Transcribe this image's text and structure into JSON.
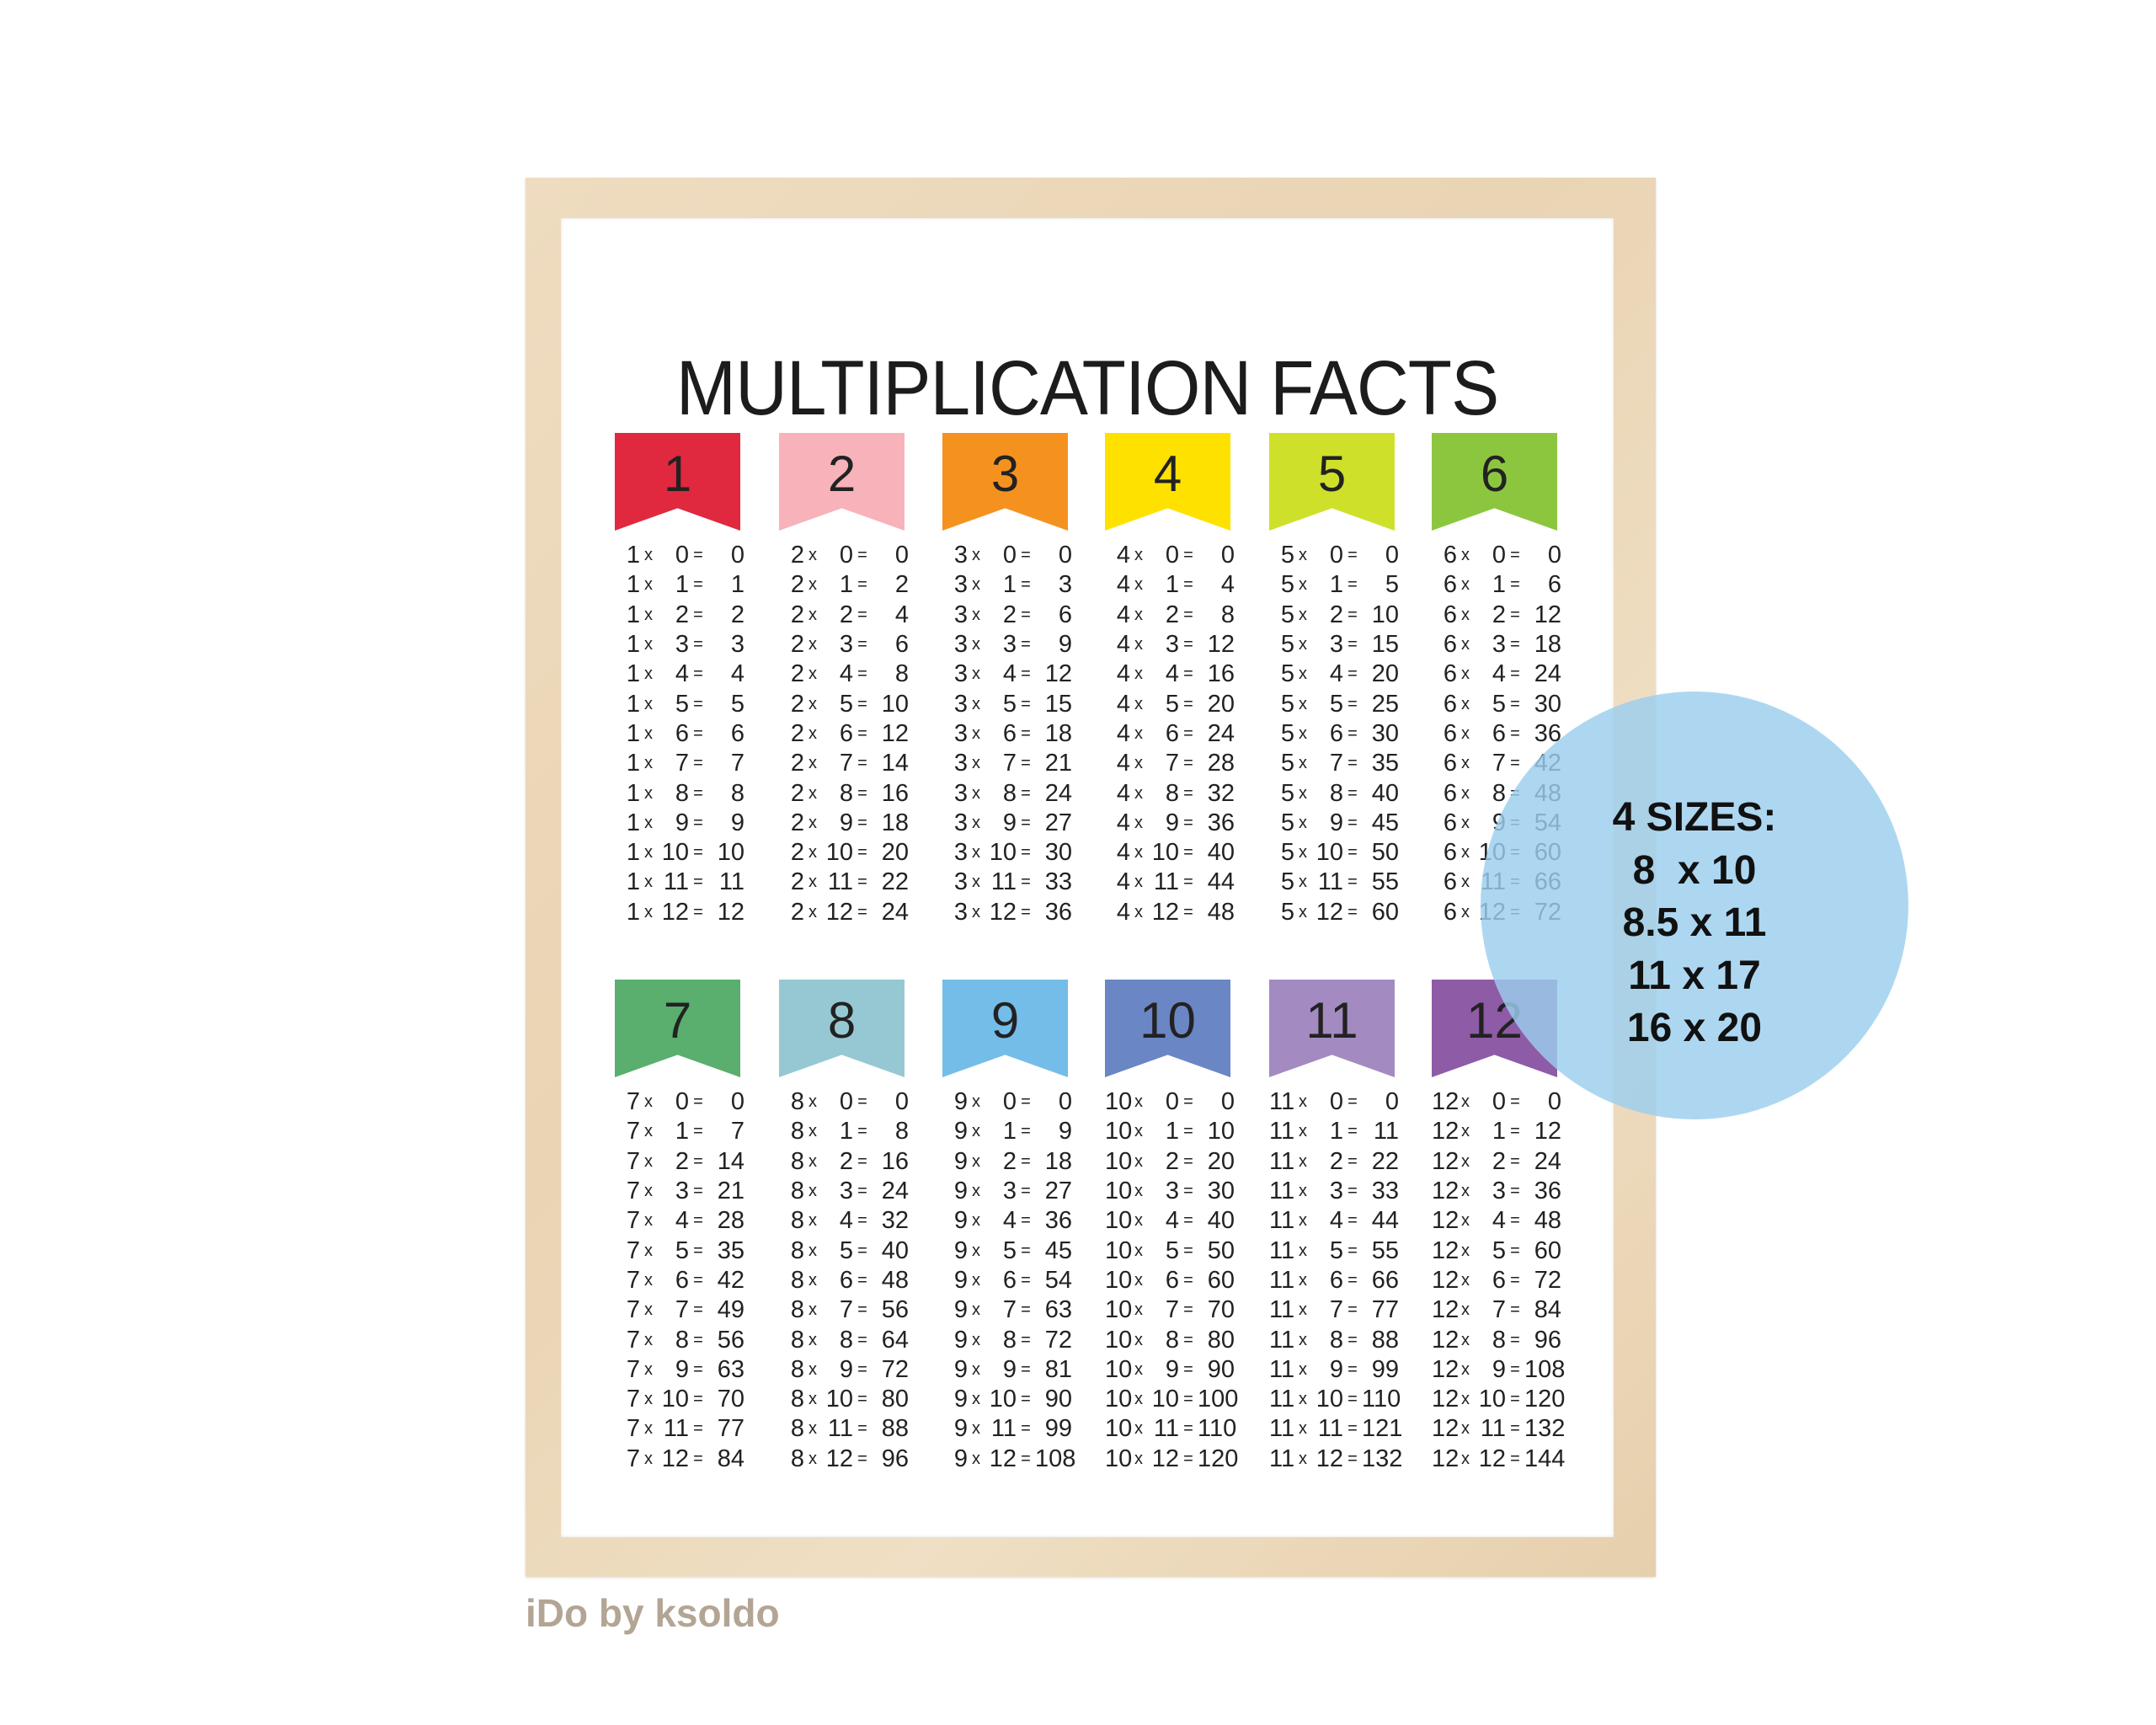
{
  "title": "MULTIPLICATION FACTS",
  "tables": [
    {
      "label": "1",
      "color": "#e0283f",
      "facts": [
        "1 x 0 = 0",
        "1 x 1 = 1",
        "1 x 2 = 2",
        "1 x 3 = 3",
        "1 x 4 = 4",
        "1 x 5 = 5",
        "1 x 6 = 6",
        "1 x 7 = 7",
        "1 x 8 = 8",
        "1 x 9 = 9",
        "1 x 10 = 10",
        "1 x 11 = 11",
        "1 x 12 = 12"
      ]
    },
    {
      "label": "2",
      "color": "#f7b3b9",
      "facts": [
        "2 x 0 = 0",
        "2 x 1 = 2",
        "2 x 2 = 4",
        "2 x 3 = 6",
        "2 x 4 = 8",
        "2 x 5 = 10",
        "2 x 6 = 12",
        "2 x 7 = 14",
        "2 x 8 = 16",
        "2 x 9 = 18",
        "2 x 10 = 20",
        "2 x 11 = 22",
        "2 x 12 = 24"
      ]
    },
    {
      "label": "3",
      "color": "#f5921f",
      "facts": [
        "3 x 0 = 0",
        "3 x 1 = 3",
        "3 x 2 = 6",
        "3 x 3 = 9",
        "3 x 4 = 12",
        "3 x 5 = 15",
        "3 x 6 = 18",
        "3 x 7 = 21",
        "3 x 8 = 24",
        "3 x 9 = 27",
        "3 x 10 = 30",
        "3 x 11 = 33",
        "3 x 12 = 36"
      ]
    },
    {
      "label": "4",
      "color": "#ffe100",
      "facts": [
        "4 x 0 = 0",
        "4 x 1 = 4",
        "4 x 2 = 8",
        "4 x 3 = 12",
        "4 x 4 = 16",
        "4 x 5 = 20",
        "4 x 6 = 24",
        "4 x 7 = 28",
        "4 x 8 = 32",
        "4 x 9 = 36",
        "4 x 10 = 40",
        "4 x 11 = 44",
        "4 x 12 = 48"
      ]
    },
    {
      "label": "5",
      "color": "#cfe02a",
      "facts": [
        "5 x 0 = 0",
        "5 x 1 = 5",
        "5 x 2 = 10",
        "5 x 3 = 15",
        "5 x 4 = 20",
        "5 x 5 = 25",
        "5 x 6 = 30",
        "5 x 7 = 35",
        "5 x 8 = 40",
        "5 x 9 = 45",
        "5 x 10 = 50",
        "5 x 11 = 55",
        "5 x 12 = 60"
      ]
    },
    {
      "label": "6",
      "color": "#8cc63f",
      "facts": [
        "6 x 0 = 0",
        "6 x 1 = 6",
        "6 x 2 = 12",
        "6 x 3 = 18",
        "6 x 4 = 24",
        "6 x 5 = 30",
        "6 x 6 = 36",
        "6 x 7 = 42",
        "6 x 8 = 48",
        "6 x 9 = 54",
        "6 x 10 = 60",
        "6 x 11 = 66",
        "6 x 12 = 72"
      ]
    },
    {
      "label": "7",
      "color": "#5aae6e",
      "facts": [
        "7 x 0 = 0",
        "7 x 1 = 7",
        "7 x 2 = 14",
        "7 x 3 = 21",
        "7 x 4 = 28",
        "7 x 5 = 35",
        "7 x 6 = 42",
        "7 x 7 = 49",
        "7 x 8 = 56",
        "7 x 9 = 63",
        "7 x 10 = 70",
        "7 x 11 = 77",
        "7 x 12 = 84"
      ]
    },
    {
      "label": "8",
      "color": "#96c8d4",
      "facts": [
        "8 x 0 = 0",
        "8 x 1 = 8",
        "8 x 2 = 16",
        "8 x 3 = 24",
        "8 x 4 = 32",
        "8 x 5 = 40",
        "8 x 6 = 48",
        "8 x 7 = 56",
        "8 x 8 = 64",
        "8 x 9 = 72",
        "8 x 10 = 80",
        "8 x 11 = 88",
        "8 x 12 = 96"
      ]
    },
    {
      "label": "9",
      "color": "#74bde8",
      "facts": [
        "9 x 0 = 0",
        "9 x 1 = 9",
        "9 x 2 = 18",
        "9 x 3 = 27",
        "9 x 4 = 36",
        "9 x 5 = 45",
        "9 x 6 = 54",
        "9 x 7 = 63",
        "9 x 8 = 72",
        "9 x 9 = 81",
        "9 x 10 = 90",
        "9 x 11 = 99",
        "9 x 12 = 108"
      ]
    },
    {
      "label": "10",
      "color": "#6a86c4",
      "facts": [
        "10 x 0 = 0",
        "10 x 1 = 10",
        "10 x 2 = 20",
        "10 x 3 = 30",
        "10 x 4 = 40",
        "10 x 5 = 50",
        "10 x 6 = 60",
        "10 x 7 = 70",
        "10 x 8 = 80",
        "10 x 9 = 90",
        "10 x 10 = 100",
        "10 x 11 = 110",
        "10 x 12 = 120"
      ]
    },
    {
      "label": "11",
      "color": "#a38bc2",
      "facts": [
        "11 x 0 = 0",
        "11 x 1 = 11",
        "11 x 2 = 22",
        "11 x 3 = 33",
        "11 x 4 = 44",
        "11 x 5 = 55",
        "11 x 6 = 66",
        "11 x 7 = 77",
        "11 x 8 = 88",
        "11 x 9 = 99",
        "11 x 10 = 110",
        "11 x 11 = 121",
        "11 x 12 = 132"
      ]
    },
    {
      "label": "12",
      "color": "#8e5ba6",
      "facts": [
        "12 x 0 = 0",
        "12 x 1 = 12",
        "12 x 2 = 24",
        "12 x 3 = 36",
        "12 x 4 = 48",
        "12 x 5 = 60",
        "12 x 6 = 72",
        "12 x 7 = 84",
        "12 x 8 = 96",
        "12 x 9 = 108",
        "12 x 10 = 120",
        "12 x 11 = 132",
        "12 x 12 = 144"
      ]
    }
  ],
  "badge": {
    "lines": [
      "4 SIZES:",
      "8  x 10",
      "8.5 x 11",
      "11 x 17",
      "16 x 20"
    ],
    "color": "#9bceee"
  },
  "brand": "iDo by ksoldo"
}
